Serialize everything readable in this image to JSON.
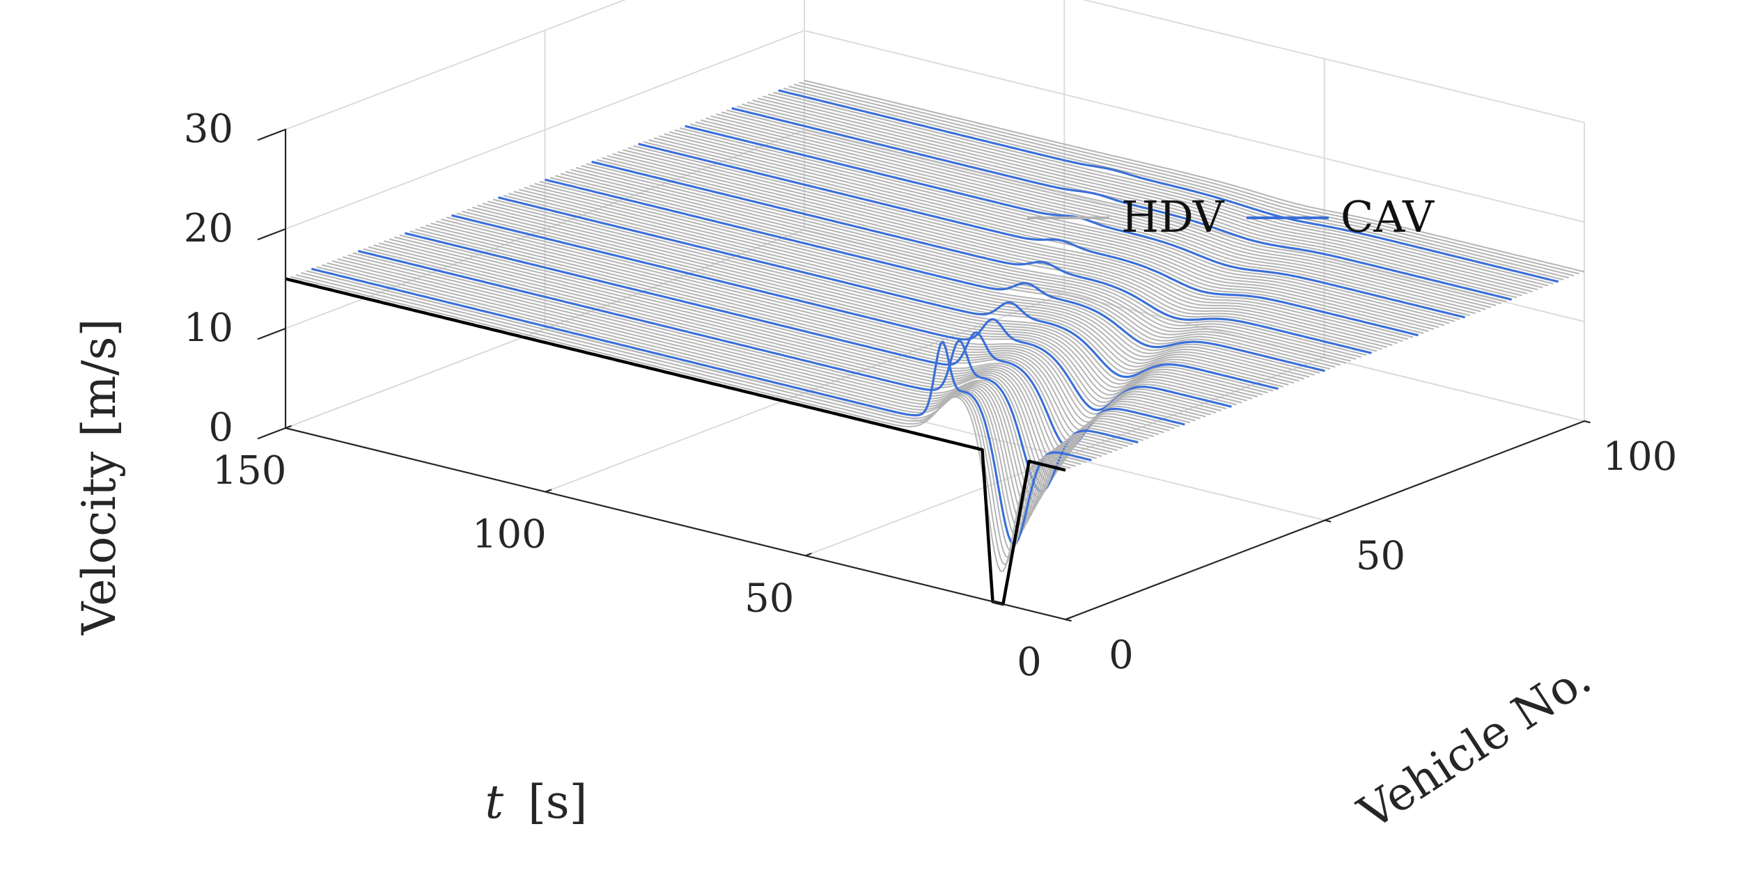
{
  "chart_data": {
    "type": "line3d",
    "title": "",
    "xlabel_var": "t",
    "xlabel_unit": "[s]",
    "ylabel": "Vehicle No.",
    "zlabel": "Velocity [m/s]",
    "xlim": [
      0,
      150
    ],
    "ylim": [
      0,
      100
    ],
    "zlim": [
      0,
      30
    ],
    "x_ticks": [
      "0",
      "50",
      "100",
      "150"
    ],
    "y_ticks": [
      "0",
      "50",
      "100"
    ],
    "z_ticks": [
      "0",
      "10",
      "20",
      "30"
    ],
    "grid": true,
    "legend": {
      "position": "top-right",
      "entries": [
        {
          "name": "HDV",
          "color": "#b4b4b4"
        },
        {
          "name": "CAV",
          "color": "#3a6fd8"
        }
      ]
    },
    "head_vehicle": {
      "color": "#000000",
      "cruise_speed": 15,
      "profile": [
        [
          0,
          15
        ],
        [
          7,
          15
        ],
        [
          10,
          6
        ],
        [
          12,
          0
        ],
        [
          14,
          0
        ],
        [
          16,
          15
        ],
        [
          150,
          15
        ]
      ]
    },
    "followers": {
      "count": 100,
      "cruise_speed": 15,
      "hdv_color": "#b4b4b4",
      "cav_color": "#3a6fd8",
      "cav_vehicles": [
        5,
        14,
        23,
        32,
        41,
        50,
        59,
        68,
        77,
        86,
        95
      ]
    }
  }
}
